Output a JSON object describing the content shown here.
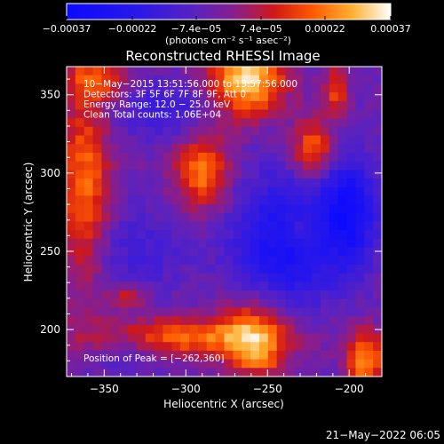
{
  "chart_data": {
    "type": "heatmap",
    "title": "Reconstructed RHESSI Image",
    "xlabel": "Heliocentric X (arcsec)",
    "ylabel": "Heliocentric Y (arcsec)",
    "xlim": [
      -373,
      -180
    ],
    "ylim": [
      170,
      368
    ],
    "x_ticks": [
      -350,
      -300,
      -250,
      -200
    ],
    "y_ticks": [
      200,
      250,
      300,
      350
    ],
    "x_tick_labels": [
      "−350",
      "−300",
      "−250",
      "−200"
    ],
    "y_tick_labels": [
      "200",
      "250",
      "300",
      "350"
    ],
    "colorbar": {
      "range": [
        -0.00037,
        0.00037
      ],
      "ticks": [
        -0.00037,
        -0.00022,
        -7.4e-05,
        7.4e-05,
        0.00022,
        0.00037
      ],
      "tick_labels": [
        "−0.00037",
        "−0.00022",
        "−7.4e−05",
        "7.4e−05",
        "0.00022",
        "0.00037"
      ],
      "units": "(photons cm⁻² s⁻¹ asec⁻²)"
    },
    "info_lines": [
      "10−May−2015 13:51:56.000 to 13:57:56.000",
      "Detectors: 3F 5F 6F 7F 8F 9F, Att 0",
      "Energy Range: 12.0 − 25.0 keV",
      "Clean     Total counts: 1.06E+04"
    ],
    "peak_label": "Position of Peak = [−262,360]",
    "sources": [
      {
        "x": -262,
        "y": 360,
        "sx": 16,
        "sy": 16,
        "value": 0.00037
      },
      {
        "x": -290,
        "y": 300,
        "sx": 12,
        "sy": 16,
        "value": 0.00026
      },
      {
        "x": -222,
        "y": 315,
        "sx": 9,
        "sy": 13,
        "value": 0.00025
      },
      {
        "x": -208,
        "y": 352,
        "sx": 5,
        "sy": 11,
        "value": 0.0002
      },
      {
        "x": -362,
        "y": 292,
        "sx": 11,
        "sy": 45,
        "value": 0.00024
      },
      {
        "x": -355,
        "y": 360,
        "sx": 14,
        "sy": 10,
        "value": 0.00018
      },
      {
        "x": -300,
        "y": 195,
        "sx": 42,
        "sy": 9,
        "value": 0.00024
      },
      {
        "x": -258,
        "y": 198,
        "sx": 14,
        "sy": 16,
        "value": 0.00025
      },
      {
        "x": -190,
        "y": 180,
        "sx": 8,
        "sy": 14,
        "value": 0.00028
      },
      {
        "x": -335,
        "y": 222,
        "sx": 8,
        "sy": 6,
        "value": 0.00016
      },
      {
        "x": -230,
        "y": 265,
        "sx": 8,
        "sy": 8,
        "value": 0.0001
      },
      {
        "x": -255,
        "y": 180,
        "sx": 9,
        "sy": 6,
        "value": 0.00014
      }
    ],
    "negative_regions": [
      {
        "x": -240,
        "y": 255,
        "sx": 22,
        "sy": 30,
        "value": -0.00026
      },
      {
        "x": -200,
        "y": 275,
        "sx": 12,
        "sy": 25,
        "value": -0.00028
      },
      {
        "x": -330,
        "y": 250,
        "sx": 22,
        "sy": 20,
        "value": -0.0001
      },
      {
        "x": -335,
        "y": 185,
        "sx": 15,
        "sy": 10,
        "value": -0.0001
      },
      {
        "x": -315,
        "y": 340,
        "sx": 18,
        "sy": 12,
        "value": -0.00014
      }
    ]
  },
  "footer": {
    "timestamp": "21−May−2022 06:05"
  }
}
